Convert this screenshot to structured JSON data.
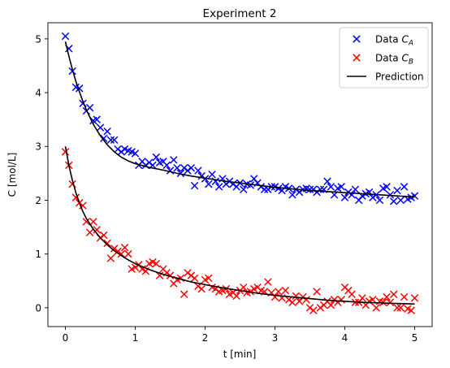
{
  "chart_data": {
    "type": "scatter",
    "title": "Experiment 2",
    "xlabel": "t [min]",
    "ylabel": "C [mol/L]",
    "xlim": [
      -0.25,
      5.25
    ],
    "ylim": [
      -0.35,
      5.3
    ],
    "xticks": [
      0,
      1,
      2,
      3,
      4,
      5
    ],
    "yticks": [
      0,
      1,
      2,
      3,
      4,
      5
    ],
    "grid": false,
    "legend_position": "top-right",
    "series": [
      {
        "name": "Data C_A",
        "legend_main": "Data ",
        "legend_var": "C",
        "legend_sub": "A",
        "kind": "scatter",
        "marker": "x",
        "color": "#0000ff",
        "x": [
          0.0,
          0.05,
          0.1,
          0.15,
          0.2,
          0.25,
          0.3,
          0.35,
          0.4,
          0.45,
          0.5,
          0.55,
          0.6,
          0.65,
          0.7,
          0.75,
          0.8,
          0.85,
          0.9,
          0.95,
          1.0,
          1.05,
          1.1,
          1.15,
          1.2,
          1.25,
          1.3,
          1.35,
          1.4,
          1.45,
          1.5,
          1.55,
          1.6,
          1.65,
          1.7,
          1.75,
          1.8,
          1.85,
          1.9,
          1.95,
          2.0,
          2.05,
          2.1,
          2.15,
          2.2,
          2.25,
          2.3,
          2.35,
          2.4,
          2.45,
          2.5,
          2.55,
          2.6,
          2.65,
          2.7,
          2.75,
          2.8,
          2.85,
          2.9,
          2.95,
          3.0,
          3.05,
          3.1,
          3.15,
          3.2,
          3.25,
          3.3,
          3.35,
          3.4,
          3.45,
          3.5,
          3.55,
          3.6,
          3.65,
          3.7,
          3.75,
          3.8,
          3.85,
          3.9,
          3.95,
          4.0,
          4.05,
          4.1,
          4.15,
          4.2,
          4.25,
          4.3,
          4.35,
          4.4,
          4.45,
          4.5,
          4.55,
          4.6,
          4.65,
          4.7,
          4.75,
          4.8,
          4.85,
          4.9,
          4.95,
          5.0
        ],
        "y": [
          5.05,
          4.82,
          4.4,
          4.1,
          4.08,
          3.8,
          3.66,
          3.72,
          3.48,
          3.5,
          3.35,
          3.15,
          3.28,
          3.12,
          3.12,
          2.95,
          2.9,
          2.95,
          2.92,
          2.9,
          2.87,
          2.65,
          2.72,
          2.65,
          2.7,
          2.65,
          2.8,
          2.7,
          2.72,
          2.65,
          2.55,
          2.75,
          2.6,
          2.5,
          2.6,
          2.55,
          2.6,
          2.27,
          2.55,
          2.45,
          2.4,
          2.3,
          2.48,
          2.35,
          2.25,
          2.4,
          2.3,
          2.35,
          2.3,
          2.25,
          2.32,
          2.2,
          2.3,
          2.28,
          2.4,
          2.32,
          2.25,
          2.2,
          2.2,
          2.25,
          2.25,
          2.22,
          2.18,
          2.25,
          2.22,
          2.1,
          2.2,
          2.15,
          2.2,
          2.22,
          2.2,
          2.2,
          2.15,
          2.2,
          2.2,
          2.35,
          2.25,
          2.1,
          2.22,
          2.25,
          2.05,
          2.15,
          2.1,
          2.2,
          2.0,
          2.08,
          2.12,
          2.15,
          2.05,
          2.1,
          2.0,
          2.22,
          2.25,
          2.1,
          1.98,
          2.18,
          2.0,
          2.25,
          2.02,
          2.05,
          2.08
        ]
      },
      {
        "name": "Data C_B",
        "legend_main": "Data ",
        "legend_var": "C",
        "legend_sub": "B",
        "kind": "scatter",
        "marker": "x",
        "color": "#ff0000",
        "x": [
          0.0,
          0.05,
          0.1,
          0.15,
          0.2,
          0.25,
          0.3,
          0.35,
          0.4,
          0.45,
          0.5,
          0.55,
          0.6,
          0.65,
          0.7,
          0.75,
          0.8,
          0.85,
          0.9,
          0.95,
          1.0,
          1.05,
          1.1,
          1.15,
          1.2,
          1.25,
          1.3,
          1.35,
          1.4,
          1.45,
          1.5,
          1.55,
          1.6,
          1.65,
          1.7,
          1.75,
          1.8,
          1.85,
          1.9,
          1.95,
          2.0,
          2.05,
          2.1,
          2.15,
          2.2,
          2.25,
          2.3,
          2.35,
          2.4,
          2.45,
          2.5,
          2.55,
          2.6,
          2.65,
          2.7,
          2.75,
          2.8,
          2.85,
          2.9,
          2.95,
          3.0,
          3.05,
          3.1,
          3.15,
          3.2,
          3.25,
          3.3,
          3.35,
          3.4,
          3.45,
          3.5,
          3.55,
          3.6,
          3.65,
          3.7,
          3.75,
          3.8,
          3.85,
          3.9,
          3.95,
          4.0,
          4.05,
          4.1,
          4.15,
          4.2,
          4.25,
          4.3,
          4.35,
          4.4,
          4.45,
          4.5,
          4.55,
          4.6,
          4.65,
          4.7,
          4.75,
          4.8,
          4.85,
          4.9,
          4.95,
          5.0
        ],
        "y": [
          2.9,
          2.65,
          2.3,
          2.05,
          1.95,
          1.9,
          1.6,
          1.4,
          1.6,
          1.45,
          1.3,
          1.35,
          1.2,
          0.92,
          1.1,
          1.05,
          1.0,
          1.12,
          1.0,
          0.72,
          0.75,
          0.8,
          0.72,
          0.68,
          0.82,
          0.85,
          0.82,
          0.6,
          0.72,
          0.65,
          0.6,
          0.45,
          0.52,
          0.55,
          0.25,
          0.65,
          0.6,
          0.55,
          0.4,
          0.35,
          0.52,
          0.55,
          0.38,
          0.35,
          0.3,
          0.32,
          0.35,
          0.25,
          0.28,
          0.22,
          0.32,
          0.38,
          0.28,
          0.3,
          0.35,
          0.38,
          0.32,
          0.3,
          0.48,
          0.28,
          0.2,
          0.3,
          0.18,
          0.32,
          0.15,
          0.1,
          0.22,
          0.12,
          0.2,
          0.15,
          0.0,
          -0.05,
          0.3,
          0.0,
          0.05,
          0.12,
          0.05,
          0.15,
          0.1,
          0.15,
          0.38,
          0.32,
          0.25,
          0.1,
          0.1,
          0.18,
          0.05,
          0.12,
          0.15,
          0.0,
          0.12,
          0.1,
          0.2,
          0.1,
          0.25,
          0.0,
          0.0,
          0.2,
          -0.02,
          -0.05,
          0.18
        ]
      },
      {
        "name": "Prediction",
        "kind": "line",
        "color": "#000000",
        "x": [
          0.0,
          0.05,
          0.1,
          0.15,
          0.2,
          0.25,
          0.3,
          0.4,
          0.5,
          0.6,
          0.7,
          0.8,
          0.9,
          1.0,
          1.2,
          1.4,
          1.6,
          1.8,
          2.0,
          2.25,
          2.5,
          2.75,
          3.0,
          3.25,
          3.5,
          3.75,
          4.0,
          4.25,
          4.5,
          4.75,
          5.0
        ],
        "y": [
          4.95,
          4.68,
          4.43,
          4.21,
          4.02,
          3.84,
          3.68,
          3.41,
          3.2,
          3.03,
          2.9,
          2.8,
          2.73,
          2.68,
          2.61,
          2.56,
          2.5,
          2.45,
          2.41,
          2.36,
          2.32,
          2.28,
          2.24,
          2.21,
          2.18,
          2.16,
          2.14,
          2.12,
          2.1,
          2.08,
          2.06
        ]
      },
      {
        "name": "Prediction",
        "kind": "line",
        "color": "#000000",
        "legend": false,
        "x": [
          0.0,
          0.05,
          0.1,
          0.15,
          0.2,
          0.25,
          0.3,
          0.4,
          0.5,
          0.6,
          0.7,
          0.8,
          0.9,
          1.0,
          1.2,
          1.4,
          1.6,
          1.8,
          2.0,
          2.25,
          2.5,
          2.75,
          3.0,
          3.25,
          3.5,
          3.75,
          4.0,
          4.25,
          4.5,
          4.75,
          5.0
        ],
        "y": [
          3.0,
          2.65,
          2.37,
          2.14,
          1.95,
          1.79,
          1.66,
          1.46,
          1.3,
          1.17,
          1.06,
          0.97,
          0.89,
          0.82,
          0.71,
          0.62,
          0.55,
          0.48,
          0.43,
          0.37,
          0.32,
          0.27,
          0.23,
          0.2,
          0.17,
          0.14,
          0.12,
          0.1,
          0.09,
          0.08,
          0.07
        ]
      }
    ]
  }
}
